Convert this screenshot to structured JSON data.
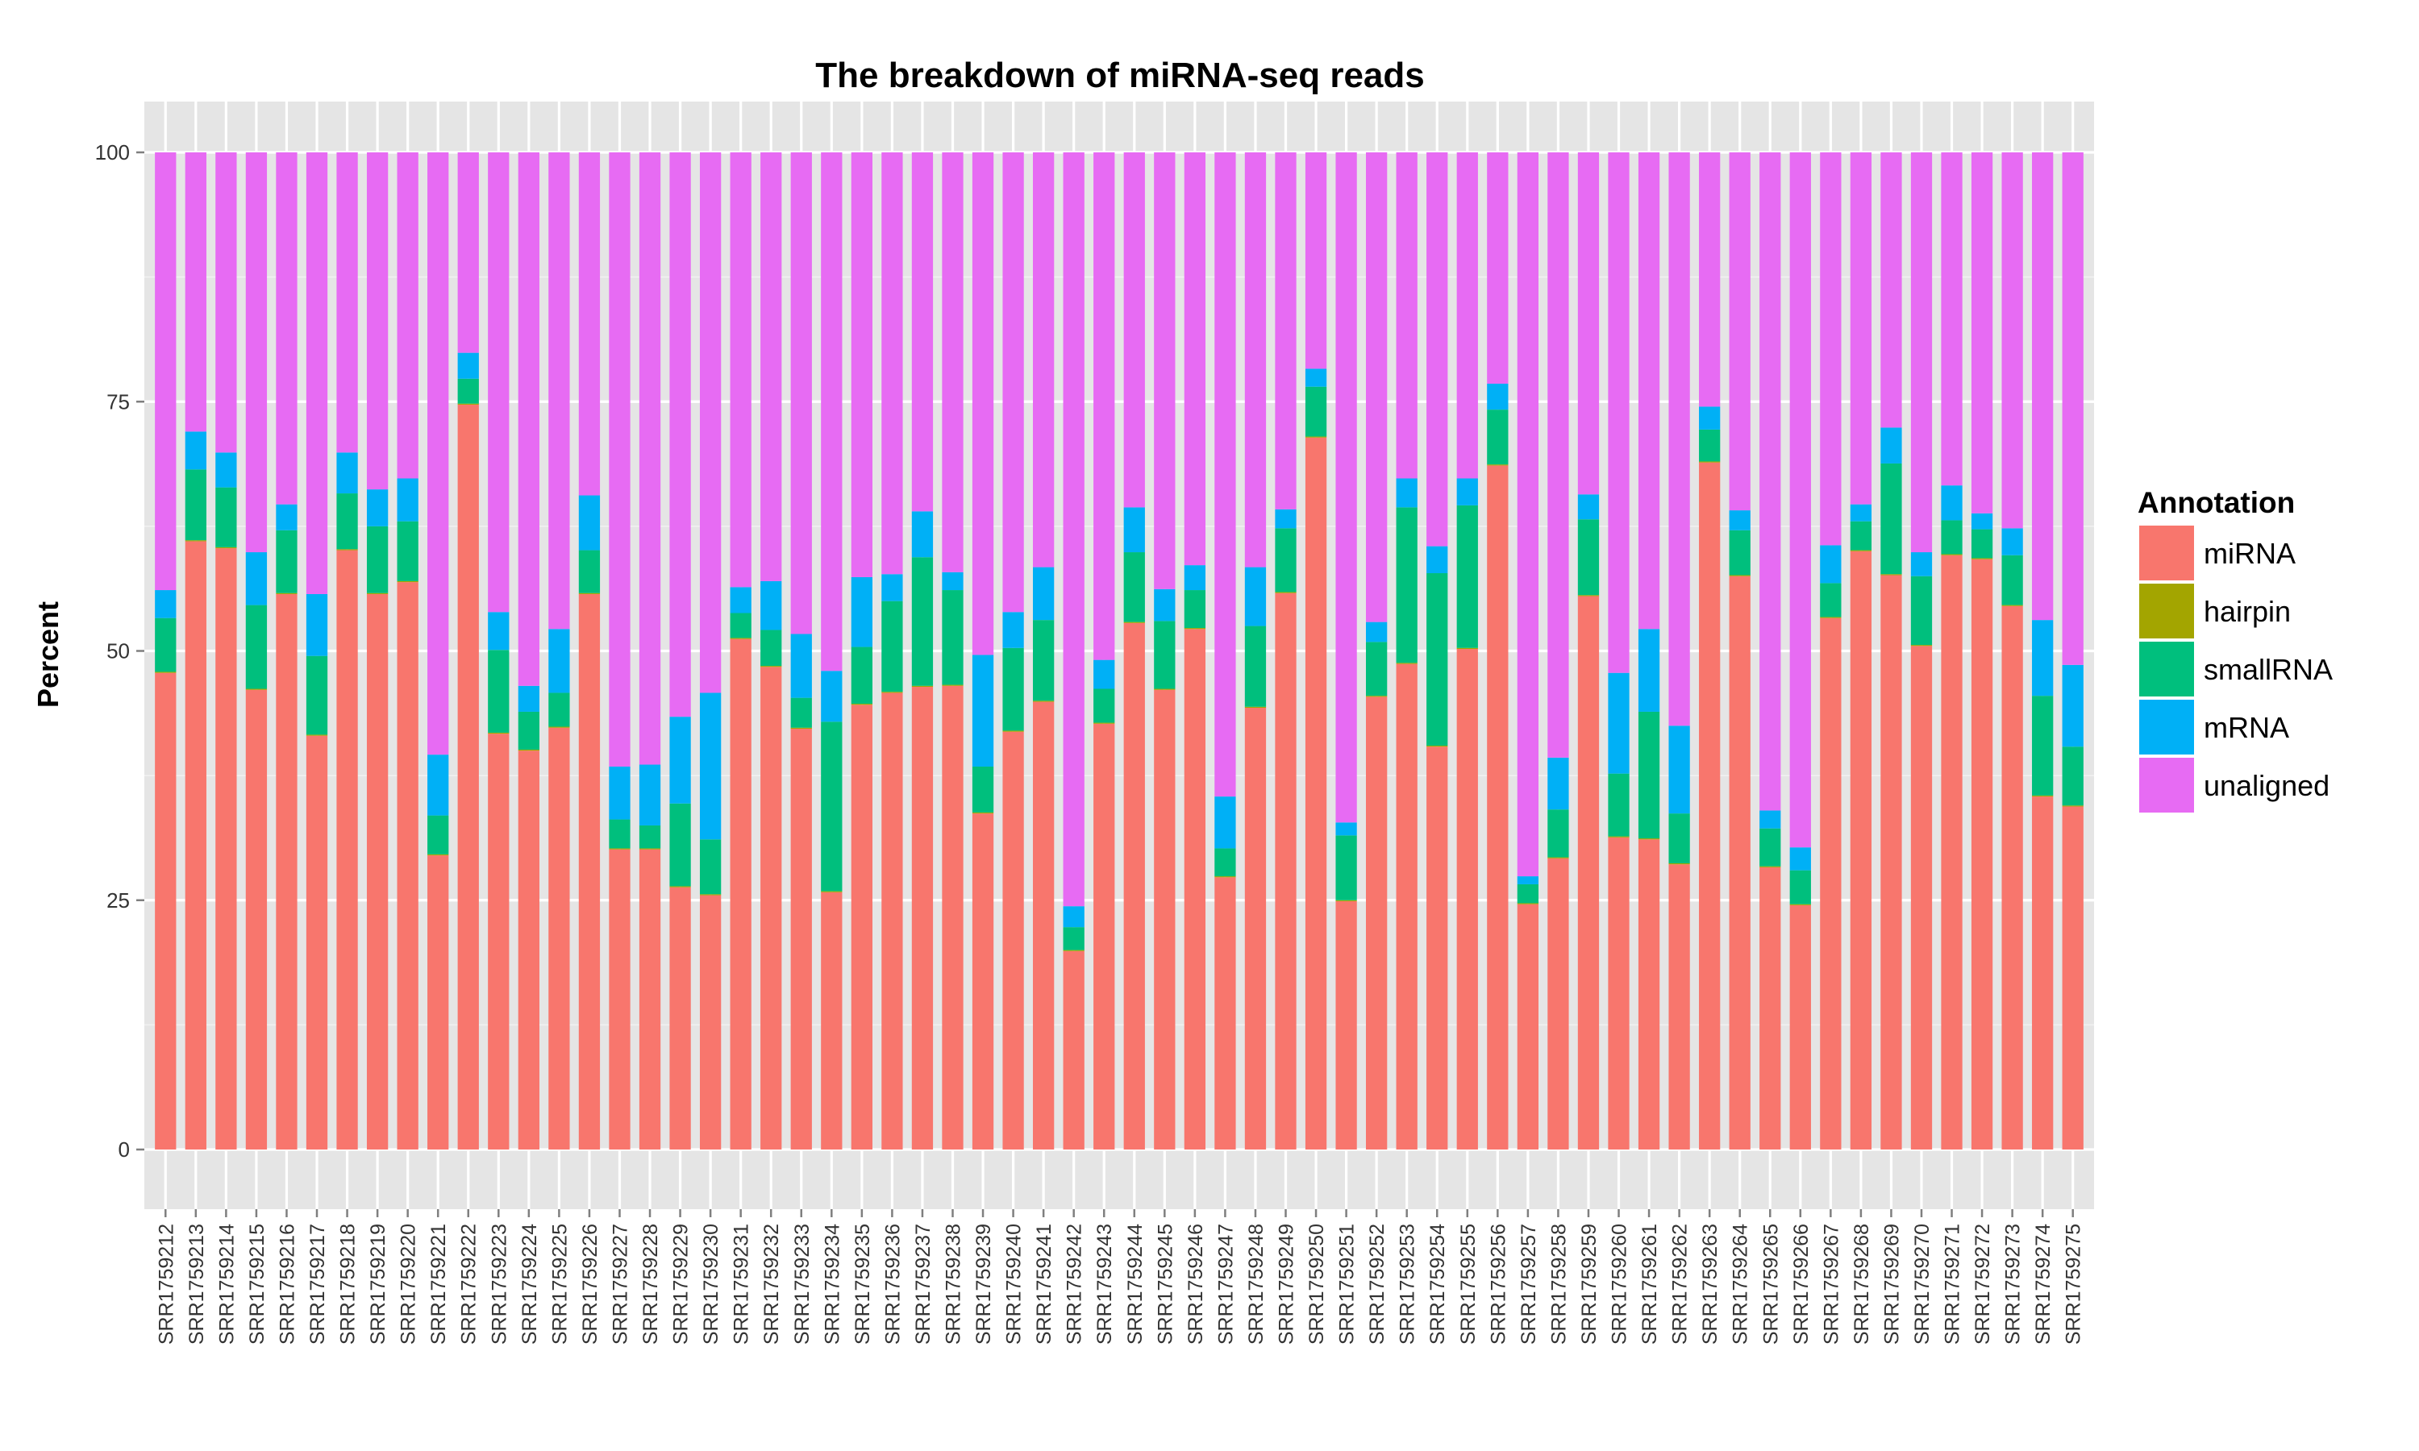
{
  "chart_data": {
    "type": "bar",
    "stacked": true,
    "title": "The breakdown of miRNA-seq reads",
    "xlabel": "",
    "ylabel": "Percent",
    "ylim": [
      0,
      100
    ],
    "yticks": [
      0,
      25,
      50,
      75,
      100
    ],
    "grid": true,
    "legend_title": "Annotation",
    "legend_position": "right",
    "categories": [
      "SRR1759212",
      "SRR1759213",
      "SRR1759214",
      "SRR1759215",
      "SRR1759216",
      "SRR1759217",
      "SRR1759218",
      "SRR1759219",
      "SRR1759220",
      "SRR1759221",
      "SRR1759222",
      "SRR1759223",
      "SRR1759224",
      "SRR1759225",
      "SRR1759226",
      "SRR1759227",
      "SRR1759228",
      "SRR1759229",
      "SRR1759230",
      "SRR1759231",
      "SRR1759232",
      "SRR1759233",
      "SRR1759234",
      "SRR1759235",
      "SRR1759236",
      "SRR1759237",
      "SRR1759238",
      "SRR1759239",
      "SRR1759240",
      "SRR1759241",
      "SRR1759242",
      "SRR1759243",
      "SRR1759244",
      "SRR1759245",
      "SRR1759246",
      "SRR1759247",
      "SRR1759248",
      "SRR1759249",
      "SRR1759250",
      "SRR1759251",
      "SRR1759252",
      "SRR1759253",
      "SRR1759254",
      "SRR1759255",
      "SRR1759256",
      "SRR1759257",
      "SRR1759258",
      "SRR1759259",
      "SRR1759260",
      "SRR1759261",
      "SRR1759262",
      "SRR1759263",
      "SRR1759264",
      "SRR1759265",
      "SRR1759266",
      "SRR1759267",
      "SRR1759268",
      "SRR1759269",
      "SRR1759270",
      "SRR1759271",
      "SRR1759272",
      "SRR1759273",
      "SRR1759274",
      "SRR1759275"
    ],
    "series": [
      {
        "name": "miRNA",
        "color": "#F8766D",
        "values": [
          47.8,
          61,
          60.3,
          46.1,
          55.7,
          41.5,
          60.1,
          55.7,
          56.9,
          29.5,
          74.7,
          41.7,
          40,
          42.3,
          55.7,
          30.1,
          30.1,
          26.3,
          25.5,
          51.2,
          48.4,
          42.2,
          25.8,
          44.6,
          45.8,
          46.4,
          46.5,
          33.7,
          41.9,
          44.9,
          19.9,
          42.7,
          52.8,
          46.1,
          52.2,
          27.3,
          44.3,
          55.8,
          71.4,
          24.9,
          45.4,
          48.7,
          40.4,
          50.2,
          68.6,
          24.6,
          29.2,
          55.5,
          31.3,
          31.1,
          28.6,
          68.9,
          57.5,
          28.3,
          24.5,
          53.3,
          60,
          57.6,
          50.5,
          59.6,
          59.2,
          54.5,
          35.4,
          34.4
        ]
      },
      {
        "name": "hairpin",
        "color": "#A3A500",
        "values": [
          0.1,
          0.1,
          0.1,
          0.1,
          0.1,
          0.1,
          0.1,
          0.1,
          0.1,
          0.1,
          0.1,
          0.1,
          0.1,
          0.1,
          0.1,
          0.1,
          0.1,
          0.1,
          0.1,
          0.1,
          0.1,
          0.1,
          0.1,
          0.1,
          0.1,
          0.1,
          0.1,
          0.1,
          0.1,
          0.1,
          0.1,
          0.1,
          0.1,
          0.1,
          0.1,
          0.1,
          0.1,
          0.1,
          0.1,
          0.1,
          0.1,
          0.1,
          0.1,
          0.1,
          0.1,
          0.1,
          0.1,
          0.1,
          0.1,
          0.1,
          0.1,
          0.1,
          0.1,
          0.1,
          0.1,
          0.1,
          0.1,
          0.1,
          0.1,
          0.1,
          0.1,
          0.1,
          0.1,
          0.1
        ]
      },
      {
        "name": "smallRNA",
        "color": "#00BF7D",
        "values": [
          5.4,
          7.1,
          6,
          8.4,
          6.3,
          7.9,
          5.6,
          6.7,
          6,
          3.9,
          2.5,
          8.3,
          3.8,
          3.4,
          4.3,
          2.9,
          2.3,
          8.3,
          5.5,
          2.5,
          3.6,
          3,
          17,
          5.7,
          9.1,
          12.9,
          9.5,
          4.6,
          8.3,
          8.1,
          2.3,
          3.4,
          7,
          6.8,
          3.8,
          2.8,
          8.1,
          6.4,
          5,
          6.5,
          5.4,
          15.6,
          17.3,
          14.3,
          5.5,
          1.9,
          4.8,
          7.6,
          6.3,
          12.7,
          5,
          3.2,
          4.5,
          3.8,
          3.4,
          3.4,
          2.9,
          11.1,
          6.9,
          3.4,
          2.9,
          5,
          10,
          5.9
        ]
      },
      {
        "name": "mRNA",
        "color": "#00B0F6",
        "values": [
          2.8,
          3.8,
          3.5,
          5.3,
          2.6,
          6.2,
          4.1,
          3.7,
          4.3,
          6.1,
          2.6,
          3.8,
          2.6,
          6.4,
          5.5,
          5.3,
          6.1,
          8.7,
          14.7,
          2.6,
          4.9,
          6.4,
          5.1,
          7,
          2.7,
          4.6,
          1.8,
          11.2,
          3.6,
          5.3,
          2.1,
          2.9,
          4.5,
          3.2,
          2.5,
          5.2,
          5.9,
          1.9,
          1.8,
          1.3,
          2,
          2.9,
          2.7,
          2.7,
          2.6,
          0.8,
          5.2,
          2.5,
          10.1,
          8.3,
          8.8,
          2.3,
          2,
          1.8,
          2.3,
          3.8,
          1.7,
          3.6,
          2.4,
          3.5,
          1.6,
          2.7,
          7.6,
          8.2
        ]
      },
      {
        "name": "unaligned",
        "color": "#E76BF3",
        "values": [
          43.9,
          28,
          30.1,
          40.1,
          35.3,
          44.3,
          30.1,
          33.8,
          32.7,
          60.4,
          20.1,
          46.1,
          53.5,
          47.8,
          34.4,
          61.6,
          61.4,
          56.6,
          54.2,
          43.6,
          43,
          48.3,
          52,
          42.6,
          42.3,
          36,
          42.1,
          50.4,
          46.1,
          41.6,
          75.6,
          50.9,
          35.6,
          43.8,
          41.4,
          64.6,
          41.6,
          35.8,
          21.7,
          67.2,
          47.1,
          32.7,
          39.5,
          32.7,
          23.2,
          72.6,
          60.7,
          34.3,
          52.2,
          47.8,
          57.5,
          25.5,
          35.9,
          66,
          69.7,
          39.4,
          35.3,
          27.6,
          40.1,
          33.4,
          36.2,
          37.7,
          46.9,
          51.4
        ]
      }
    ]
  }
}
